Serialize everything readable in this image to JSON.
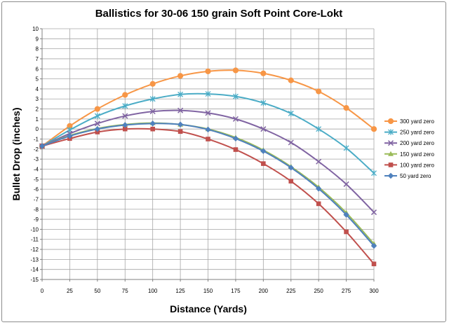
{
  "chart_data": {
    "type": "line",
    "title": "Ballistics for 30-06 150 grain Soft Point Core-Lokt",
    "xlabel": "Distance (Yards)",
    "ylabel": "Bullet Drop (inches)",
    "xlim": [
      0,
      300
    ],
    "ylim": [
      -15,
      10
    ],
    "x_ticks": [
      0,
      25,
      50,
      75,
      100,
      125,
      150,
      175,
      200,
      225,
      250,
      275,
      300
    ],
    "y_ticks": [
      10,
      9,
      8,
      7,
      6,
      5,
      4,
      3,
      2,
      1,
      0,
      -1,
      -2,
      -3,
      -4,
      -5,
      -6,
      -7,
      -8,
      -9,
      -10,
      -11,
      -12,
      -13,
      -14,
      -15
    ],
    "grid": true,
    "legend_position": "right",
    "x": [
      0,
      25,
      50,
      75,
      100,
      125,
      150,
      175,
      200,
      225,
      250,
      275,
      300
    ],
    "series": [
      {
        "name": "300 yard zero",
        "color": "#f79646",
        "marker": "circle",
        "values": [
          -1.7,
          0.3,
          2.0,
          3.4,
          4.5,
          5.3,
          5.75,
          5.85,
          5.55,
          4.85,
          3.75,
          2.1,
          0.0
        ]
      },
      {
        "name": "250 yard zero",
        "color": "#4bacc6",
        "marker": "star",
        "values": [
          -1.7,
          -0.1,
          1.3,
          2.3,
          3.0,
          3.45,
          3.5,
          3.25,
          2.6,
          1.55,
          0.0,
          -1.9,
          -4.4
        ]
      },
      {
        "name": "200 yard zero",
        "color": "#8064a2",
        "marker": "x",
        "values": [
          -1.7,
          -0.45,
          0.55,
          1.3,
          1.75,
          1.85,
          1.6,
          1.0,
          0.0,
          -1.35,
          -3.25,
          -5.5,
          -8.3
        ]
      },
      {
        "name": "150 yard zero",
        "color": "#9bbb59",
        "marker": "triangle",
        "values": [
          -1.7,
          -0.65,
          0.05,
          0.45,
          0.6,
          0.45,
          0.0,
          -0.85,
          -2.1,
          -3.75,
          -5.8,
          -8.35,
          -11.45
        ]
      },
      {
        "name": "100 yard zero",
        "color": "#c0504d",
        "marker": "square",
        "values": [
          -1.7,
          -0.95,
          -0.3,
          0.0,
          0.0,
          -0.25,
          -1.0,
          -2.05,
          -3.45,
          -5.2,
          -7.45,
          -10.25,
          -13.45
        ]
      },
      {
        "name": "50 yard zero",
        "color": "#4f81bd",
        "marker": "diamond",
        "values": [
          -1.7,
          -0.7,
          0.0,
          0.4,
          0.55,
          0.45,
          -0.05,
          -0.95,
          -2.2,
          -3.85,
          -5.95,
          -8.55,
          -11.65
        ]
      }
    ]
  }
}
